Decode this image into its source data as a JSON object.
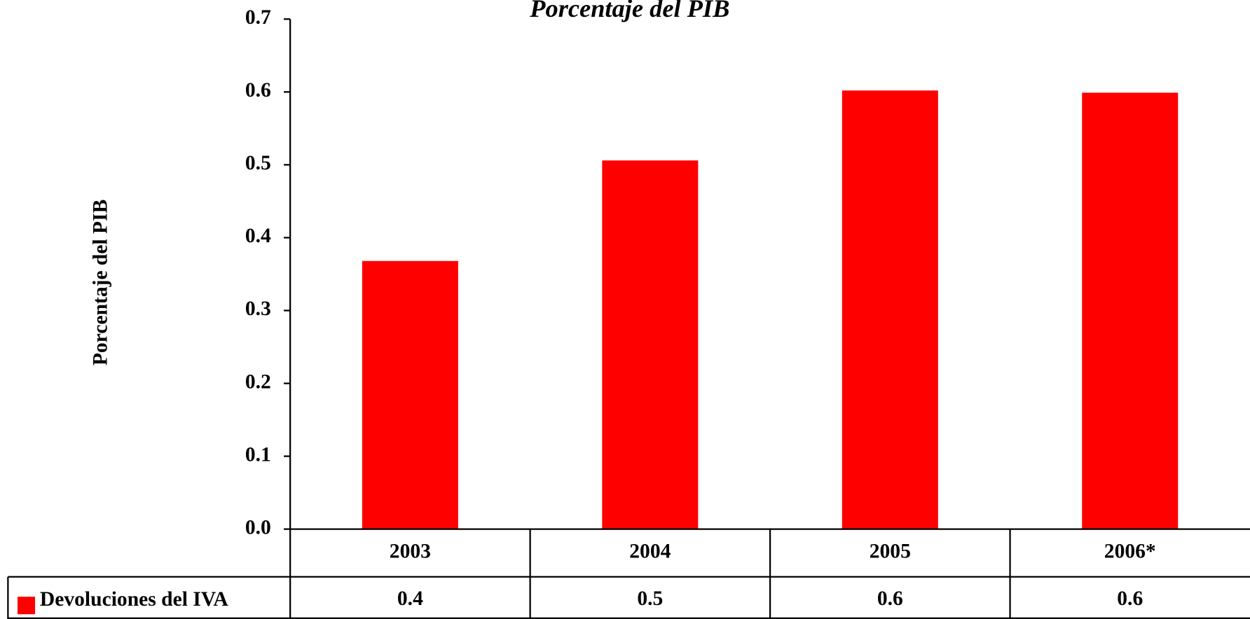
{
  "chart_data": {
    "type": "bar",
    "title": "Porcentaje del PIB",
    "y_label": "Porcentaje del PIB",
    "categories": [
      "2003",
      "2004",
      "2005",
      "2006*"
    ],
    "series": [
      {
        "name": "Devoluciones del IVA",
        "color": "#ff0000",
        "values": [
          0.368,
          0.506,
          0.602,
          0.599
        ],
        "value_labels": [
          "0.4",
          "0.5",
          "0.6",
          "0.6"
        ]
      }
    ],
    "ylim": [
      0,
      0.7
    ],
    "yticks": [
      {
        "value": 0,
        "label": "0.0"
      },
      0.1,
      0.2,
      0.3,
      0.4,
      0.5,
      0.6,
      0.7
    ],
    "grid": false
  }
}
